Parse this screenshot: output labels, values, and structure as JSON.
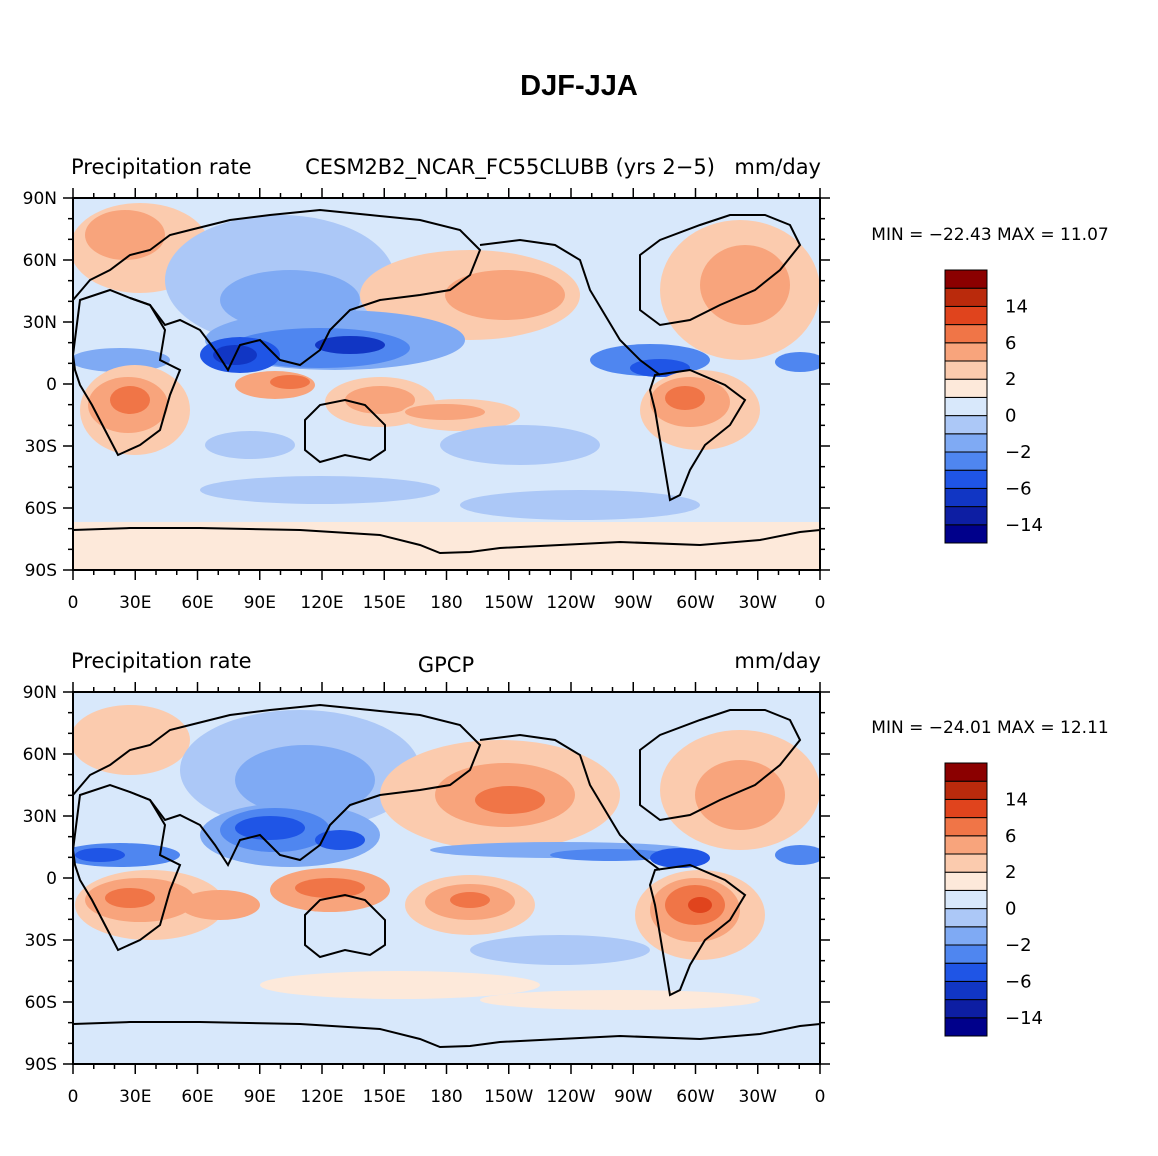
{
  "figure": {
    "title": "DJF-JJA",
    "colorbar": {
      "colors": [
        "#00008b",
        "#0d1ea3",
        "#1136c4",
        "#1f55e6",
        "#4f86f0",
        "#7faaf4",
        "#acc8f7",
        "#d8e8fb",
        "#fde9da",
        "#fbcbae",
        "#f8a47c",
        "#f07547",
        "#e0441d",
        "#ba2a0c",
        "#8b0000"
      ],
      "labels": [
        "−14",
        "−6",
        "−2",
        "0",
        "2",
        "6",
        "14"
      ],
      "levels": [
        -20,
        -14,
        -10,
        -6,
        -4,
        -2,
        -1,
        0,
        1,
        2,
        4,
        6,
        10,
        14,
        20
      ]
    },
    "x_ticks": [
      "0",
      "30E",
      "60E",
      "90E",
      "120E",
      "150E",
      "180",
      "150W",
      "120W",
      "90W",
      "60W",
      "30W",
      "0"
    ],
    "y_ticks": [
      "90N",
      "60N",
      "30N",
      "0",
      "30S",
      "60S",
      "90S"
    ]
  },
  "chart_data": [
    {
      "type": "heatmap",
      "left_title": "Precipitation rate",
      "center_title": "CESM2B2_NCAR_FC55CLUBB (yrs 2−5)",
      "right_title": "mm/day",
      "stats": "MIN = −22.43 MAX =   11.07",
      "min": -22.43,
      "max": 11.07,
      "xlim": [
        0,
        360
      ],
      "ylim": [
        -90,
        90
      ]
    },
    {
      "type": "heatmap",
      "left_title": "Precipitation rate",
      "center_title": "GPCP",
      "right_title": "mm/day",
      "stats": "MIN = −24.01 MAX =   12.11",
      "min": -24.01,
      "max": 12.11,
      "xlim": [
        0,
        360
      ],
      "ylim": [
        -90,
        90
      ]
    }
  ]
}
